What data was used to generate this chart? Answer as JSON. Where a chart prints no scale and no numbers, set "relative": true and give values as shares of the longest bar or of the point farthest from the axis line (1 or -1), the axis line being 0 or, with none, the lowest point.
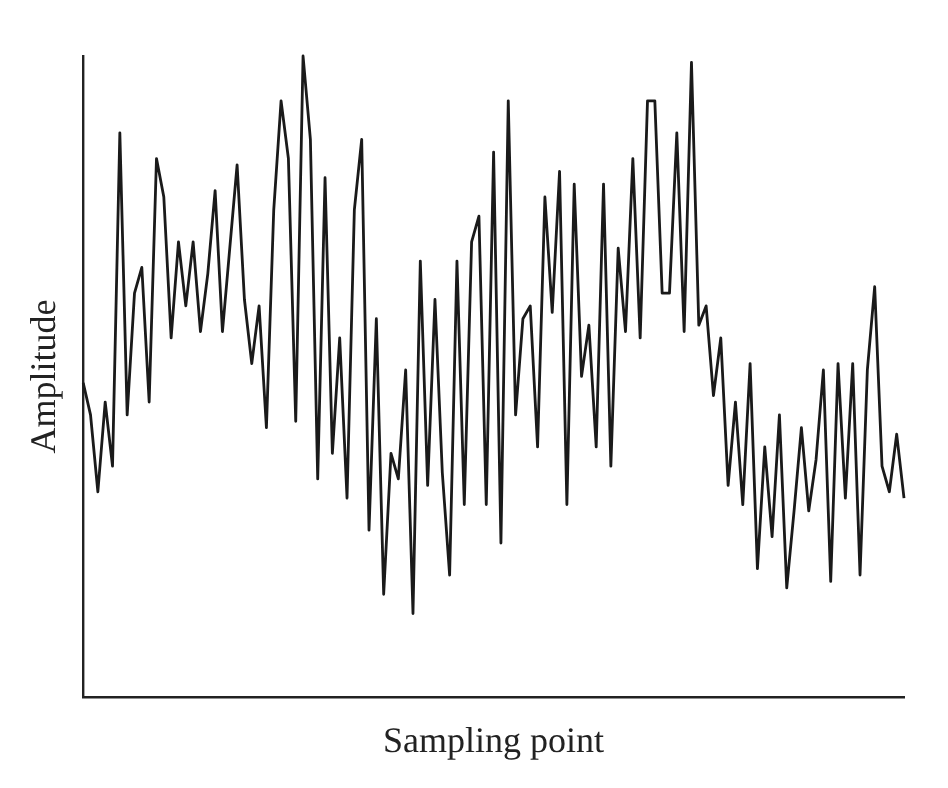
{
  "chart_data": {
    "type": "line",
    "xlabel": "Sampling point",
    "ylabel": "Amplitude",
    "relative": true,
    "grid": false,
    "legend": false,
    "marker": "none",
    "line_style": "solid",
    "categories": [
      null,
      null,
      null,
      null,
      null,
      null,
      null,
      null,
      null,
      null,
      null,
      null,
      null,
      null,
      null,
      null,
      null,
      null,
      null,
      null,
      null,
      null,
      null,
      null,
      null,
      null,
      null,
      null,
      null,
      null,
      null,
      null,
      null,
      null,
      null,
      null,
      null,
      null,
      null,
      null,
      null,
      null,
      null,
      null,
      null,
      null,
      null,
      null,
      null,
      null,
      null,
      null,
      null,
      null,
      null,
      null,
      null,
      null,
      null,
      null,
      null,
      null,
      null,
      null,
      null,
      null,
      null,
      null,
      null,
      null,
      null,
      null,
      null,
      null,
      null,
      null,
      null,
      null,
      null,
      null,
      null,
      null,
      null,
      null,
      null,
      null,
      null,
      null,
      null,
      null,
      null,
      null,
      null,
      null,
      null,
      null,
      null,
      null,
      null,
      null,
      null,
      null,
      null,
      null,
      null,
      null,
      null,
      null,
      null,
      null,
      null,
      null,
      null
    ],
    "series": [
      {
        "color": "#1a1a1a",
        "values": [
          0.49,
          0.44,
          0.32,
          0.46,
          0.36,
          0.88,
          0.44,
          0.63,
          0.67,
          0.46,
          0.84,
          0.78,
          0.56,
          0.71,
          0.61,
          0.71,
          0.57,
          0.66,
          0.79,
          0.57,
          0.7,
          0.83,
          0.62,
          0.52,
          0.61,
          0.42,
          0.76,
          0.93,
          0.84,
          0.43,
          1.0,
          0.87,
          0.34,
          0.81,
          0.38,
          0.56,
          0.31,
          0.76,
          0.87,
          0.26,
          0.59,
          0.16,
          0.38,
          0.34,
          0.51,
          0.13,
          0.68,
          0.33,
          0.62,
          0.35,
          0.19,
          0.68,
          0.3,
          0.71,
          0.75,
          0.3,
          0.85,
          0.24,
          0.93,
          0.44,
          0.59,
          0.61,
          0.39,
          0.78,
          0.6,
          0.82,
          0.3,
          0.8,
          0.5,
          0.58,
          0.39,
          0.8,
          0.36,
          0.7,
          0.57,
          0.84,
          0.56,
          0.93,
          0.93,
          0.63,
          0.63,
          0.88,
          0.57,
          0.99,
          0.58,
          0.61,
          0.47,
          0.56,
          0.33,
          0.46,
          0.3,
          0.52,
          0.2,
          0.39,
          0.25,
          0.44,
          0.17,
          0.29,
          0.42,
          0.29,
          0.37,
          0.51,
          0.18,
          0.52,
          0.31,
          0.52,
          0.19,
          0.51,
          0.64,
          0.36,
          0.32,
          0.41,
          0.31
        ]
      }
    ]
  }
}
